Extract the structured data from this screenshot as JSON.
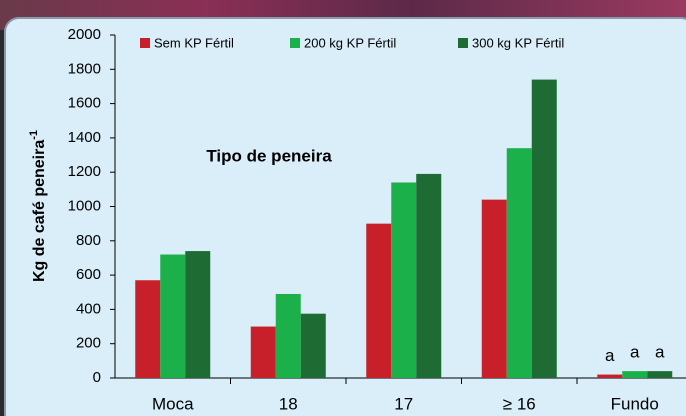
{
  "chart_data": {
    "type": "bar",
    "title": "Tipo de peneira",
    "ylabel": "Kg de café peneira",
    "ylabel_superscript": "-1",
    "categories": [
      "Moca",
      "18",
      "17",
      "≥ 16",
      "Fundo"
    ],
    "series": [
      {
        "name": "Sem KP Fértil",
        "color": "#c8202a",
        "values": [
          570,
          300,
          900,
          1040,
          20
        ]
      },
      {
        "name": "200 kg KP Fértil",
        "color": "#1cb04a",
        "values": [
          720,
          490,
          1140,
          1340,
          40
        ]
      },
      {
        "name": "300 kg KP Fértil",
        "color": "#1e6b34",
        "values": [
          740,
          375,
          1190,
          1740,
          40
        ]
      }
    ],
    "annotations": [
      "a",
      "a",
      "a"
    ],
    "ylim": [
      0,
      2000
    ],
    "yticks": [
      0,
      200,
      400,
      600,
      800,
      1000,
      1200,
      1400,
      1600,
      1800,
      2000
    ],
    "grid": false,
    "legend": "top"
  }
}
